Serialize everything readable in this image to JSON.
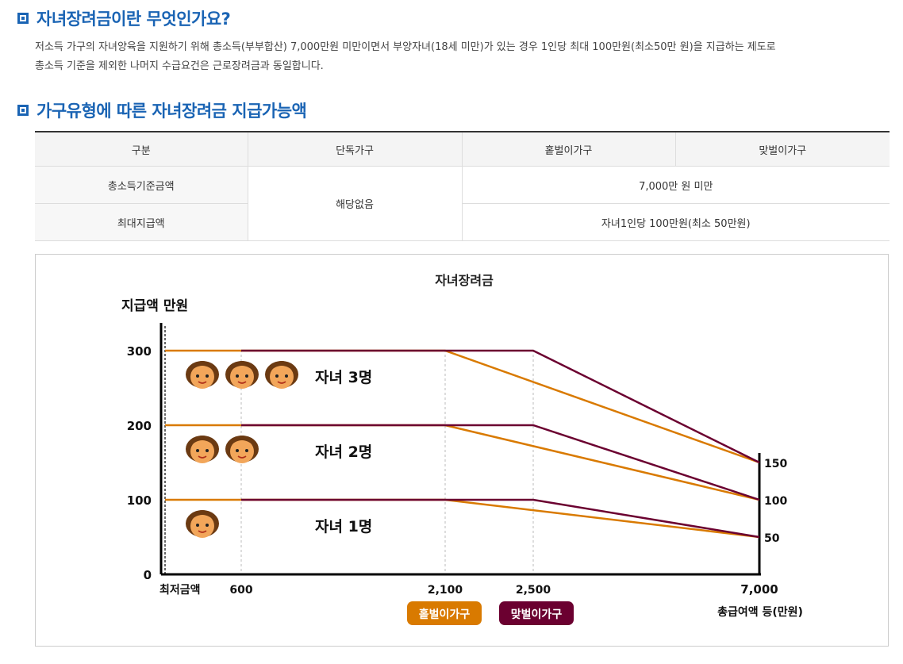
{
  "section1": {
    "title": "자녀장려금이란 무엇인가요?",
    "line1": "저소득 가구의 자녀양육을 지원하기 위해 총소득(부부합산) 7,000만원 미만이면서 부양자녀(18세 미만)가 있는 경우 1인당 최대 100만원(최소50만 원)을 지급하는 제도로",
    "line2": "총소득 기준을 제외한 나머지 수급요건은 근로장려금과 동일합니다."
  },
  "section2": {
    "title": "가구유형에 따른 자녀장려금 지급가능액"
  },
  "table": {
    "headers": [
      "구분",
      "단독가구",
      "홑벌이가구",
      "맞벌이가구"
    ],
    "row1_label": "총소득기준금액",
    "row2_label": "최대지급액",
    "single_value": "해당없음",
    "row1_value": "7,000만 원 미만",
    "row2_value": "자녀1인당 100만원(최소 50만원)"
  },
  "chart_data": {
    "type": "line",
    "title": "자녀장려금",
    "ylabel": "지급액 만원",
    "xlabel": "총급여액 등(만원)",
    "x_ticks": [
      "최저금액",
      "600",
      "2,100",
      "2,500",
      "7,000"
    ],
    "y_ticks": [
      "0",
      "100",
      "200",
      "300"
    ],
    "right_labels": [
      "150",
      "100",
      "50"
    ],
    "ylim": [
      0,
      300
    ],
    "colors": {
      "single_income": "#d97a00",
      "dual_income": "#6b0030"
    },
    "series": [
      {
        "name": "홑벌이가구",
        "group": "자녀 3명",
        "x": [
          0,
          2100,
          7000
        ],
        "y": [
          300,
          300,
          150
        ]
      },
      {
        "name": "맞벌이가구",
        "group": "자녀 3명",
        "x": [
          600,
          2500,
          7000
        ],
        "y": [
          300,
          300,
          150
        ]
      },
      {
        "name": "홑벌이가구",
        "group": "자녀 2명",
        "x": [
          0,
          2100,
          7000
        ],
        "y": [
          200,
          200,
          100
        ]
      },
      {
        "name": "맞벌이가구",
        "group": "자녀 2명",
        "x": [
          600,
          2500,
          7000
        ],
        "y": [
          200,
          200,
          100
        ]
      },
      {
        "name": "홑벌이가구",
        "group": "자녀 1명",
        "x": [
          0,
          2100,
          7000
        ],
        "y": [
          100,
          100,
          50
        ]
      },
      {
        "name": "맞벌이가구",
        "group": "자녀 1명",
        "x": [
          600,
          2500,
          7000
        ],
        "y": [
          100,
          100,
          50
        ]
      }
    ],
    "group_labels": [
      "자녀 3명",
      "자녀 2명",
      "자녀 1명"
    ],
    "legend": [
      "홑벌이가구",
      "맞벌이가구"
    ]
  }
}
